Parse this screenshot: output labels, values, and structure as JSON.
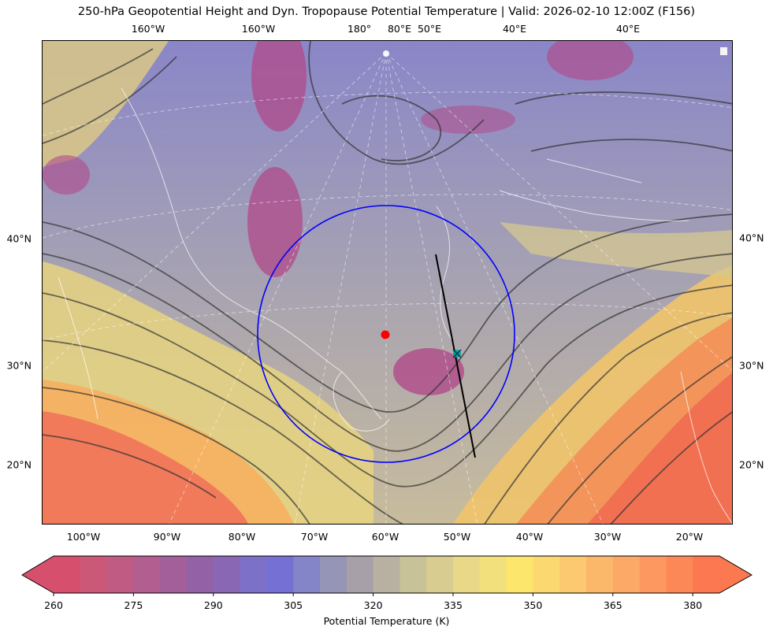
{
  "title": "250-hPa Geopotential Height and Dyn. Tropopause Potential Temperature   |  Valid: 2026-02-10 12:00Z (F156)",
  "map": {
    "top_lon_labels": [
      "160°W",
      "160°W",
      "180°",
      "80°E",
      "50°E",
      "40°E",
      "40°E"
    ],
    "bottom_lon_labels": [
      "100°W",
      "90°W",
      "80°W",
      "70°W",
      "60°W",
      "50°W",
      "40°W",
      "30°W",
      "20°W"
    ],
    "left_lat_labels": [
      "40°N",
      "30°N",
      "20°N"
    ],
    "right_lat_labels": [
      "40°N",
      "30°N",
      "20°N"
    ],
    "center_marker_color": "#ff0000",
    "circle_color": "#0000ff",
    "point_marker_color": "#00aa88",
    "cross_section_line_color": "#000000"
  },
  "colorbar": {
    "label": "Potential Temperature (K)",
    "ticks": [
      "260",
      "275",
      "290",
      "305",
      "320",
      "335",
      "350",
      "365",
      "380"
    ],
    "colors": [
      "#d6506e",
      "#cc5878",
      "#c05c84",
      "#b35e90",
      "#a25f9a",
      "#9362a6",
      "#8a67b4",
      "#7d70c8",
      "#7571d4",
      "#8484c8",
      "#9595b8",
      "#a8a0a8",
      "#b8b0a0",
      "#c8c298",
      "#d8cc90",
      "#e8d888",
      "#f2e07c",
      "#fce66c",
      "#fcd870",
      "#fcc870",
      "#fcb86a",
      "#fca866",
      "#fc9860",
      "#fc8858",
      "#fc7850"
    ],
    "min_value": 260,
    "max_value": 385,
    "tick_values": [
      260,
      275,
      290,
      305,
      320,
      335,
      350,
      365,
      380
    ]
  }
}
